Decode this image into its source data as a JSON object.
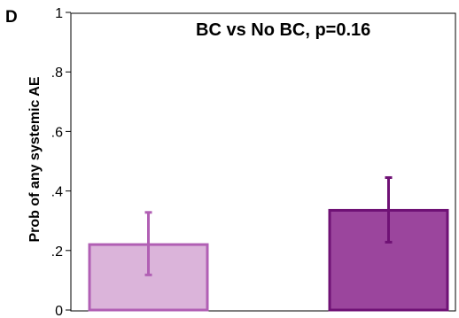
{
  "panel_label": "D",
  "chart_data": {
    "type": "bar",
    "title": "BC vs No BC, p=0.16",
    "xlabel": "",
    "ylabel": "Prob of any systemic AE",
    "ylim": [
      0,
      1
    ],
    "yticks": [
      0,
      0.2,
      0.4,
      0.6,
      0.8,
      1
    ],
    "ytick_labels": [
      "0",
      ".2",
      ".4",
      ".6",
      ".8",
      "1"
    ],
    "grid": false,
    "series": [
      {
        "values": [
          0.22,
          0.335
        ],
        "ci_low": [
          0.118,
          0.228
        ],
        "ci_high": [
          0.328,
          0.445
        ]
      }
    ],
    "bar_fill_colors": [
      "#dbb4da",
      "#9b459d"
    ],
    "bar_edge_colors": [
      "#b15fb4",
      "#6f1175"
    ]
  }
}
